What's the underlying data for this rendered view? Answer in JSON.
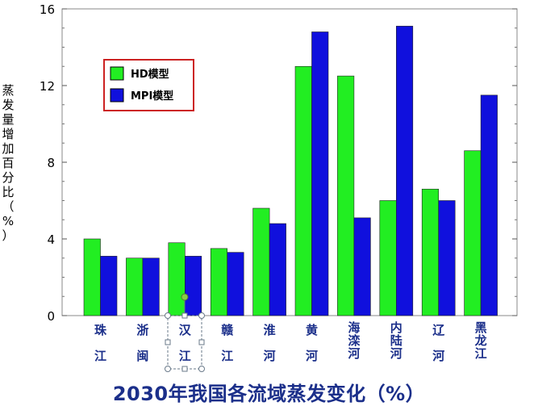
{
  "chart_data": {
    "type": "bar",
    "title": "2030年我国各流域蒸发变化（%）",
    "ylabel": "蒸发量增加百分比（%）",
    "ylabel_chars": [
      "蒸",
      "发",
      "量",
      "增",
      "加",
      "百",
      "分",
      "比",
      "（",
      "%",
      "）"
    ],
    "ylim": [
      0,
      16
    ],
    "yticks": [
      0,
      4,
      8,
      12,
      16
    ],
    "grid": false,
    "legend_position": "top-left",
    "categories": [
      "珠江",
      "浙闽",
      "汉江",
      "赣江",
      "淮河",
      "黄河",
      "海滦河",
      "内陆河",
      "辽河",
      "黑龙江"
    ],
    "category_lines": [
      [
        "珠",
        "江"
      ],
      [
        "浙",
        "闽"
      ],
      [
        "汉",
        "江"
      ],
      [
        "赣",
        "江"
      ],
      [
        "淮",
        "河"
      ],
      [
        "黄",
        "河"
      ],
      [
        "海",
        "滦",
        "河"
      ],
      [
        "内",
        "陆",
        "河"
      ],
      [
        "辽",
        "河"
      ],
      [
        "黑",
        "龙",
        "江"
      ]
    ],
    "series": [
      {
        "name": "HD模型",
        "color": "#22ee22",
        "values": [
          4.0,
          3.0,
          3.8,
          3.5,
          5.6,
          13.0,
          12.5,
          6.0,
          6.6,
          8.6
        ]
      },
      {
        "name": "MPI模型",
        "color": "#1010dd",
        "values": [
          3.1,
          3.0,
          3.1,
          3.3,
          4.8,
          14.8,
          5.1,
          15.1,
          6.0,
          11.5
        ]
      }
    ]
  }
}
